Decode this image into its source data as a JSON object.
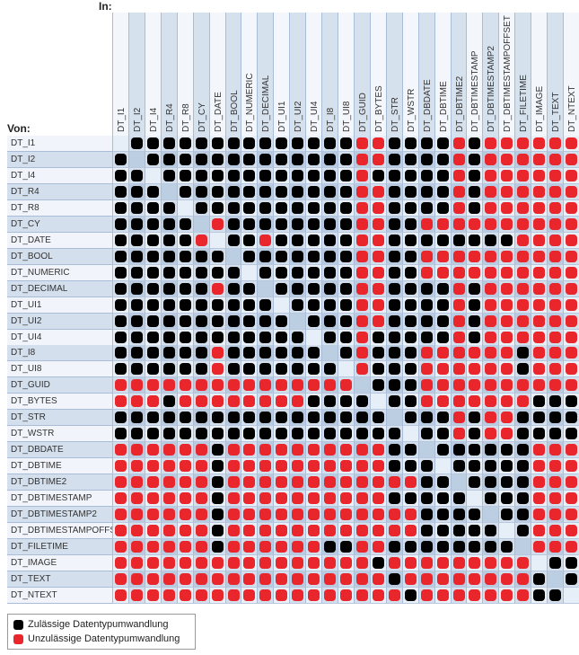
{
  "header": {
    "in_label": "In:",
    "von_label": "Von:"
  },
  "colors": {
    "allowed": "#000000",
    "not_allowed": "#e8262c",
    "light_bg": "#eef3fa",
    "dark_bg": "#c5d5e6"
  },
  "types": [
    "DT_I1",
    "DT_I2",
    "DT_I4",
    "DT_R4",
    "DT_R8",
    "DT_CY",
    "DT_DATE",
    "DT_BOOL",
    "DT_NUMERIC",
    "DT_DECIMAL",
    "DT_UI1",
    "DT_UI2",
    "DT_UI4",
    "DT_I8",
    "DT_UI8",
    "DT_GUID",
    "DT_BYTES",
    "DT_STR",
    "DT_WSTR",
    "DT_DBDATE",
    "DT_DBTIME",
    "DT_DBTIME2",
    "DT_DBTIMESTAMP",
    "DT_DBTIMESTAMP2",
    "DT_DBTIMESTAMPOFFSET",
    "DT_FILETIME",
    "DT_IMAGE",
    "DT_TEXT",
    "DT_NTEXT"
  ],
  "matrix_legend": {
    "B": "allowed",
    "R": "not_allowed",
    "-": "same type"
  },
  "matrix": [
    "-BBBBBBBBBBBBBBRRBBBBRBRRRRRR",
    "B-BBBBBBBBBBBBBRRBBBBRBRRRRRR",
    "BB-BBBBBBBBBBBBRBBBBBRBRRRRRR",
    "BBB-BBBBBBBBBBBRRBBBBRBRRRRRR",
    "BBBB-BBBBBBBBBBRRBBBBRBRRRRRR",
    "BBBBB-RBBBBBBBBRRBBRRRRRRRRRR",
    "BBBBBR-BBRBBBBBRRBBBBBBBBRRRR",
    "BBBBBBB-BBBBBBBRRBBRRRRRRRRRR",
    "BBBBBBBB-BBBBBBRRBBRRRRRRRRRR",
    "BBBBBBRBB-BBBBBRRBBBBRBRRRRRR",
    "BBBBBBBBBB-BBBBRRBBBBRBRRRRRR",
    "BBBBBBBBBBB-BBBRRBBBBRBRRRRRR",
    "BBBBBBBBBBBB-BBRBBBBBRBRRRRRR",
    "BBBBBBRBBBBBB-BRBBBRRRRRRBRRR",
    "BBBBBBRBBBBBBB-RBBBRRRRRRBRRR",
    "RRRRRRRRRRRRRRR-BBBRRRRRRRRRR",
    "RRRBRRRRRRRRBBBB-BBRRRRRRRBBB",
    "BBBBBBBBBBBBBBBBB-BBBRBRRBBBB",
    "BBBBBBBBBBBBBBBBBB-BBRBRRBBBB",
    "RRRRRRBRRRRRRRRRRBB-BBBBBBRRR",
    "RRRRRRBRRRRRRRRRRBBB-BBBBBRRR",
    "RRRRRRBRRRRRRRRRRRRBB-BBBBRRR",
    "RRRRRRBRRRRRRRRRRBBBBB-BBBRRR",
    "RRRRRRBRRRRRRRRRRRRBBBB-BBRRR",
    "RRRRRRBRRRRRRRRRRRRBBBBB-BRRR",
    "RRRRRRBRRRRRRBBRRBBBBBBBB-RRR",
    "RRRRRRRRRRRRRRRRBRRRRRRRRR-BB",
    "RRRRRRRRRRRRRRRRRBRRRRRRRRB-B",
    "RRRRRRRRRRRRRRRRRRBRRRRRRRBB-"
  ],
  "legend": {
    "allowed": "Zulässige Datentypumwandlung",
    "not_allowed": "Unzulässige Datentypumwandlung"
  }
}
